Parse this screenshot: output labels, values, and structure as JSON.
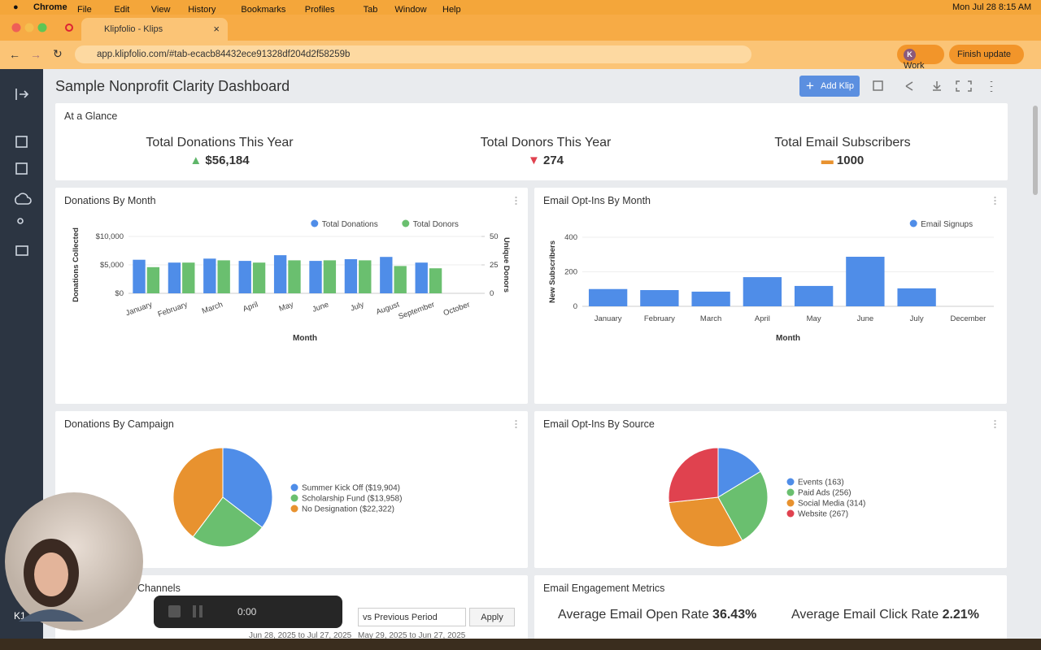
{
  "menubar": {
    "app": "Chrome",
    "items": [
      "File",
      "Edit",
      "View",
      "History",
      "Bookmarks",
      "Profiles",
      "Tab",
      "Window",
      "Help"
    ],
    "clock": "Mon Jul 28  8:15 AM"
  },
  "browser": {
    "tab_title": "Klipfolio - Klips",
    "url": "app.klipfolio.com/#tab-ecacb84432ece91328df204d2f58259b",
    "profile_initial": "K",
    "profile": "Work",
    "update": "Finish update"
  },
  "dashboard": {
    "title": "Sample Nonprofit Clarity Dashboard",
    "add_button": "Add Klip",
    "glance": {
      "title": "At a Glance",
      "kpis": [
        {
          "label": "Total Donations This Year",
          "value": "$56,184"
        },
        {
          "label": "Total Donors This Year",
          "value": "274"
        },
        {
          "label": "Total Email Subscribers",
          "value": "1000"
        }
      ]
    },
    "channels": {
      "title": "Channels",
      "comparison": "vs Previous Period",
      "apply": "Apply",
      "current_range": "Jun 28, 2025 to Jul 27, 2025",
      "previous_range": "May 29, 2025 to Jun 27, 2025"
    },
    "engagement": {
      "title": "Email Engagement Metrics",
      "metrics": [
        {
          "label": "Average Email Open Rate",
          "value": "36.43%"
        },
        {
          "label": "Average Email Click Rate",
          "value": "2.21%"
        }
      ]
    },
    "user_initials": "K1",
    "recorder_time": "0:00"
  },
  "chart_data": [
    {
      "type": "bar",
      "title": "Donations By Month",
      "x_label": "Month",
      "y_label": "Donations Collected",
      "y2_label": "Unique Donors",
      "categories": [
        "January",
        "February",
        "March",
        "April",
        "May",
        "June",
        "July",
        "August",
        "September",
        "October"
      ],
      "series": [
        {
          "name": "Total Donations",
          "color": "#4f8de8",
          "values": [
            5900,
            5400,
            6100,
            5700,
            6700,
            5700,
            6000,
            6400,
            5400,
            0
          ]
        },
        {
          "name": "Total Donors",
          "color": "#6abf6f",
          "axis": "y2",
          "values": [
            23,
            27,
            29,
            27,
            29,
            29,
            29,
            24,
            22,
            0
          ]
        }
      ],
      "ylim": [
        0,
        10000
      ],
      "yticks": [
        {
          "value": 0,
          "label": "$0"
        },
        {
          "value": 5000,
          "label": "$5,000"
        },
        {
          "value": 10000,
          "label": "$10,000"
        }
      ],
      "y2lim": [
        0,
        50
      ],
      "y2ticks": [
        0,
        25,
        50
      ],
      "grid": true,
      "legend": "top-right"
    },
    {
      "type": "bar",
      "title": "Email Opt-Ins By Month",
      "x_label": "Month",
      "y_label": "New Subscribers",
      "categories": [
        "January",
        "February",
        "March",
        "April",
        "May",
        "June",
        "July",
        "December"
      ],
      "series": [
        {
          "name": "Email Signups",
          "color": "#4f8de8",
          "values": [
            100,
            94,
            85,
            169,
            118,
            287,
            104,
            0
          ]
        }
      ],
      "ylim": [
        0,
        400
      ],
      "yticks": [
        0,
        200,
        400
      ],
      "grid": true,
      "legend": "top-right"
    },
    {
      "type": "pie",
      "title": "Donations By Campaign",
      "labels": [
        "Summer Kick Off ($19,904)",
        "Scholarship Fund ($13,958)",
        "No Designation ($22,322)"
      ],
      "values": [
        19904,
        13958,
        22322
      ],
      "colors": [
        "#4f8de8",
        "#6abf6f",
        "#e8922f"
      ]
    },
    {
      "type": "pie",
      "title": "Email Opt-Ins By Source",
      "labels": [
        "Events (163)",
        "Paid Ads (256)",
        "Social Media (314)",
        "Website (267)"
      ],
      "values": [
        163,
        256,
        314,
        267
      ],
      "colors": [
        "#4f8de8",
        "#6abf6f",
        "#e8922f",
        "#e0424f"
      ]
    }
  ]
}
